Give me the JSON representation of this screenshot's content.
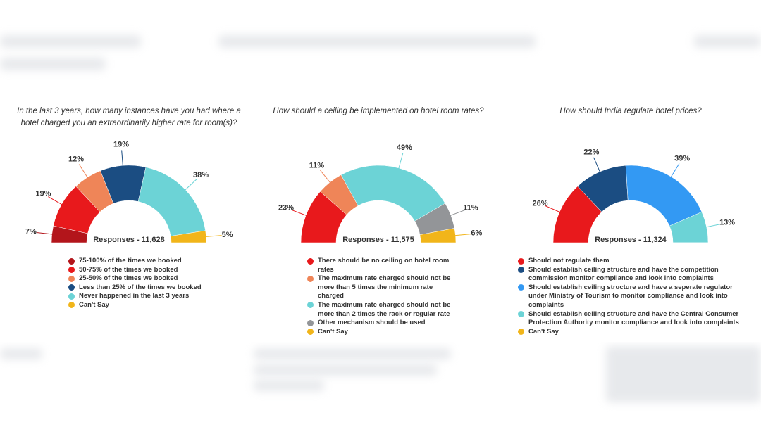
{
  "chart_data": [
    {
      "type": "pie",
      "half": true,
      "title": "In the last 3 years, how many instances have you had where a hotel charged you an extraordinarily higher rate for room(s)?",
      "center_text": "Responses - 11,628",
      "categories": [
        "75-100% of the times we booked",
        "50-75% of the times we booked",
        "25-50% of the times we booked",
        "Less than 25% of the times we booked",
        "Never happened in the last 3 years",
        "Can't Say"
      ],
      "values": [
        7,
        19,
        12,
        19,
        38,
        5
      ],
      "value_labels": [
        "7%",
        "19%",
        "12%",
        "19%",
        "38%",
        "5%"
      ],
      "colors": [
        "#b3151b",
        "#e8191c",
        "#ef8558",
        "#1b4d82",
        "#6cd3d6",
        "#f1b51a"
      ]
    },
    {
      "type": "pie",
      "half": true,
      "title": "How should a ceiling be implemented on hotel room rates?",
      "center_text": "Responses - 11,575",
      "categories": [
        "There should be no ceiling on hotel room rates",
        "The maximum rate charged should not be more than 5 times the minimum rate charged",
        "The maximum rate charged should not be more than 2 times the rack or regular rate",
        "Other mechanism should be used",
        "Can't Say"
      ],
      "values": [
        23,
        11,
        49,
        11,
        6
      ],
      "value_labels": [
        "23%",
        "11%",
        "49%",
        "11%",
        "6%"
      ],
      "colors": [
        "#e8191c",
        "#ef8558",
        "#6cd3d6",
        "#939598",
        "#f1b51a"
      ]
    },
    {
      "type": "pie",
      "half": true,
      "title": "How should India regulate hotel prices?",
      "center_text": "Responses - 11,324",
      "categories": [
        "Should not regulate them",
        "Should establish ceiling structure and have the competition commission monitor compliance and look into complaints",
        "Should establish ceiling structure and have a seperate regulator under Ministry of Tourism to monitor compliance and look into complaints",
        "Should establish ceiling structure and have the Central Consumer Protection Authority monitor compliance and look into complaints",
        "Can't Say"
      ],
      "values": [
        26,
        22,
        39,
        13,
        0
      ],
      "value_labels": [
        "26%",
        "22%",
        "39%",
        "13%",
        null
      ],
      "colors": [
        "#e8191c",
        "#1b4d82",
        "#3399f3",
        "#6cd3d6",
        "#f1b51a"
      ]
    }
  ]
}
